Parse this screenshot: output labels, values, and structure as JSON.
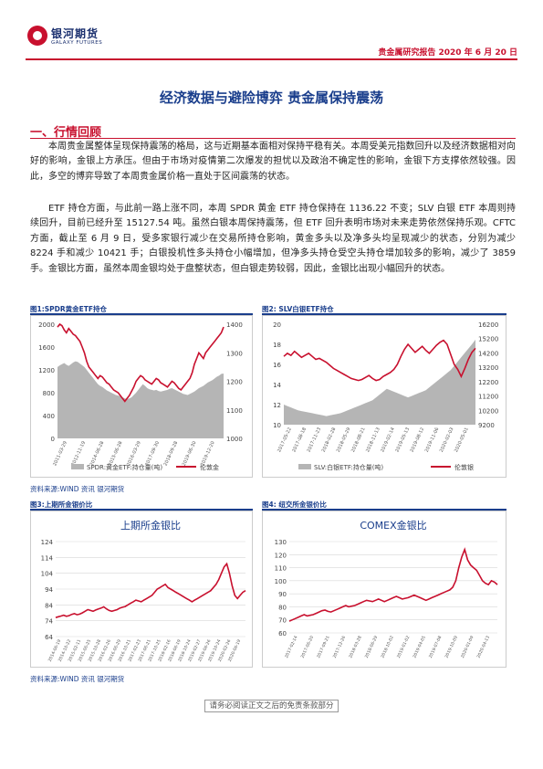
{
  "header": {
    "logo_cn": "银河期货",
    "logo_en": "GALAXY FUTURES",
    "report_label": "贵金属研究报告 2020 年 6 月 20 日"
  },
  "title": "经济数据与避险博弈 贵金属保持震荡",
  "section1": "一、行情回顾",
  "paragraph1": "本周贵金属整体呈现保持震荡的格局，这与近期基本面相对保持平稳有关。本周受美元指数回升以及经济数据相对向好的影响，金银上方承压。但由于市场对疫情第二次爆发的担忧以及政治不确定性的影响，金银下方支撑依然较强。因此，多空的博弈导致了本周贵金属价格一直处于区间震荡的状态。",
  "paragraph2": "ETF 持仓方面，与此前一路上涨不同，本周 SPDR 黄金 ETF 持仓保持在 1136.22 不变；SLV 白银 ETF 本周则持续回升，目前已经升至 15127.54 吨。虽然白银本周保持震荡，但 ETF 回升表明市场对未来走势依然保持乐观。CFTC 方面，截止至 6 月 9 日，受多家银行减少在交易所持仓影响，黄金多头以及净多头均呈现减少的状态，分别为减少 8224 手和减少 10421 手；白银投机性多头持仓小幅增加，但净多头持仓受空头持仓增加较多的影响，减少了 3859 手。金银比方面，虽然本周金银均处于盘整状态，但白银走势较弱，因此，金银比出现小幅回升的状态。",
  "figure1_caption": "图1:SPDR黄金ETF持仓",
  "figure2_caption": "图2: SLV白银ETF持仓",
  "figure3_caption": "图3:上期所金银价比",
  "figure4_caption": "图4: 纽交所金银价比",
  "source1": "资料来源:WIND 资讯   银河期货",
  "source2": "资料来源:WIND 资讯   银河期货",
  "footer": "请务必阅读正文之后的免责条款部分",
  "chart_data": [
    {
      "type": "area",
      "left_axis_ticks": [
        "0",
        "400",
        "800",
        "1200",
        "1600",
        "2000"
      ],
      "right_axis_ticks": [
        "1000",
        "1100",
        "1200",
        "1300",
        "1400"
      ],
      "x_ticks": [
        "2011-03-29",
        "2012-11-19",
        "2014-06-28",
        "2015-06-28",
        "2016-03-29",
        "2017-09-30",
        "2018-09-28",
        "2019-06-30",
        "2019-12-20"
      ],
      "series": [
        {
          "name": "SPDR:黄金ETF:持仓量(吨)",
          "type": "area",
          "axis": "left",
          "values": [
            1250,
            1280,
            1300,
            1320,
            1290,
            1270,
            1300,
            1330,
            1350,
            1340,
            1310,
            1280,
            1250,
            1200,
            1150,
            1100,
            1050,
            1000,
            950,
            920,
            900,
            870,
            840,
            820,
            800,
            780,
            760,
            750,
            740,
            720,
            700,
            690,
            700,
            720,
            760,
            800,
            850,
            900,
            950,
            920,
            880,
            860,
            850,
            840,
            850,
            830,
            820,
            830,
            840,
            850,
            870,
            880,
            860,
            840,
            820,
            800,
            780,
            770,
            760,
            780,
            800,
            820,
            850,
            880,
            900,
            920,
            950,
            980,
            1000,
            1020,
            1050,
            1080,
            1100,
            1130,
            1136
          ]
        },
        {
          "name": "伦敦金",
          "type": "line",
          "axis": "right",
          "values": [
            1390,
            1400,
            1395,
            1380,
            1370,
            1385,
            1375,
            1365,
            1360,
            1350,
            1340,
            1320,
            1300,
            1270,
            1250,
            1240,
            1230,
            1220,
            1210,
            1220,
            1215,
            1205,
            1195,
            1190,
            1180,
            1170,
            1165,
            1160,
            1150,
            1140,
            1130,
            1140,
            1150,
            1165,
            1180,
            1200,
            1210,
            1220,
            1215,
            1205,
            1200,
            1195,
            1190,
            1200,
            1210,
            1205,
            1195,
            1190,
            1185,
            1180,
            1190,
            1200,
            1195,
            1185,
            1175,
            1170,
            1180,
            1190,
            1200,
            1210,
            1230,
            1260,
            1280,
            1300,
            1290,
            1280,
            1300,
            1310,
            1320,
            1330,
            1340,
            1350,
            1360,
            1370,
            1390
          ]
        }
      ]
    },
    {
      "type": "area",
      "left_axis_ticks": [
        "10",
        "12",
        "14",
        "16",
        "18",
        "20"
      ],
      "right_axis_ticks": [
        "9200",
        "10200",
        "11200",
        "12200",
        "13200",
        "14200",
        "15200",
        "16200"
      ],
      "x_ticks": [
        "2017-05-22",
        "2017-08-18",
        "2017-11-23",
        "2018-02-28",
        "2018-05-29",
        "2018-08-21",
        "2018-11-13",
        "2019-02-14",
        "2019-05-13",
        "2019-08-12",
        "2019-11-06",
        "2020-02-03",
        "2020-05-01"
      ],
      "series": [
        {
          "name": "SLV:白银ETF:持仓量(吨)",
          "type": "area",
          "axis": "right",
          "values": [
            10600,
            10500,
            10400,
            10300,
            10200,
            10150,
            10100,
            10050,
            10000,
            9950,
            9900,
            9850,
            9800,
            9850,
            9900,
            9950,
            10000,
            10100,
            10200,
            10300,
            10400,
            10500,
            10600,
            10700,
            10800,
            10900,
            11100,
            11300,
            11500,
            11700,
            11600,
            11500,
            11400,
            11300,
            11200,
            11100,
            11200,
            11300,
            11400,
            11500,
            11600,
            11800,
            12000,
            12200,
            12400,
            12600,
            12800,
            13000,
            13300,
            13600,
            13900,
            14200,
            14500,
            14800,
            15127
          ]
        },
        {
          "name": "伦敦银",
          "type": "line",
          "axis": "left",
          "values": [
            16.8,
            17.1,
            16.9,
            17.3,
            17.0,
            16.7,
            16.9,
            17.1,
            16.8,
            16.5,
            16.6,
            16.4,
            16.2,
            15.9,
            15.6,
            15.4,
            15.2,
            15.0,
            14.8,
            14.6,
            14.5,
            14.4,
            14.5,
            14.7,
            14.9,
            14.6,
            14.4,
            14.5,
            14.8,
            15.0,
            15.2,
            15.5,
            16.0,
            16.8,
            17.5,
            18.0,
            17.6,
            17.2,
            17.5,
            17.8,
            17.4,
            17.1,
            17.5,
            17.9,
            18.2,
            18.4,
            18.0,
            17.0,
            16.0,
            15.5,
            14.8,
            15.6,
            16.5,
            17.2,
            17.6
          ]
        }
      ]
    },
    {
      "type": "line",
      "title": "上期所金银比",
      "y_ticks": [
        "64",
        "74",
        "84",
        "94",
        "104",
        "114",
        "124"
      ],
      "ylim": [
        64,
        124
      ],
      "x_ticks": [
        "2014-06-19",
        "2014-10-22",
        "2015-02-11",
        "2015-06-25",
        "2015-10-28",
        "2016-02-26",
        "2016-06-29",
        "2016-10-21",
        "2017-02-23",
        "2017-06-21",
        "2017-10-25",
        "2018-02-16",
        "2018-06-19",
        "2018-10-24",
        "2019-02-27",
        "2019-06-26",
        "2019-10-24",
        "2020-02-26",
        "2020-06-19"
      ],
      "values": [
        76,
        76.5,
        77,
        77.5,
        76.8,
        77.2,
        78,
        78.5,
        77.8,
        78.2,
        79,
        80,
        81,
        80.5,
        80,
        80.8,
        81.5,
        82,
        82.8,
        81.5,
        80.5,
        80,
        80.5,
        81,
        82,
        82.5,
        83,
        84,
        85,
        86,
        87,
        86.5,
        86,
        87,
        88,
        89,
        90,
        92,
        94,
        95,
        96,
        97,
        95,
        94,
        93,
        92,
        91,
        90,
        89,
        88,
        87,
        86,
        87,
        88,
        89,
        90,
        91,
        92,
        93,
        95,
        97,
        100,
        104,
        108,
        110,
        104,
        96,
        90,
        88,
        90,
        92,
        93
      ]
    },
    {
      "type": "line",
      "title": "COMEX金银比",
      "y_ticks": [
        "60",
        "70",
        "80",
        "90",
        "100",
        "110",
        "120",
        "130"
      ],
      "ylim": [
        60,
        130
      ],
      "x_ticks": [
        "2017-02-14",
        "2017-06-20",
        "2017-09-21",
        "2017-12-26",
        "2018-03-28",
        "2018-06-29",
        "2018-10-02",
        "2019-01-02",
        "2019-04-05",
        "2019-07-08",
        "2019-10-09",
        "2020-01-09",
        "2020-04-13"
      ],
      "values": [
        69,
        70,
        71,
        72,
        73,
        74,
        73,
        73.5,
        74,
        75,
        76,
        77,
        77.5,
        76.5,
        76,
        77,
        78,
        79,
        80,
        81,
        80,
        80.5,
        81,
        82,
        83,
        84,
        85,
        84.5,
        84,
        85,
        86,
        85,
        84,
        85,
        86,
        87,
        88,
        87,
        86,
        86.5,
        87,
        88,
        89,
        88,
        87,
        86,
        85,
        86,
        87,
        88,
        89,
        90,
        91,
        92,
        93,
        95,
        100,
        110,
        118,
        124,
        116,
        112,
        110,
        108,
        104,
        100,
        98,
        97,
        100,
        99,
        97
      ]
    }
  ]
}
